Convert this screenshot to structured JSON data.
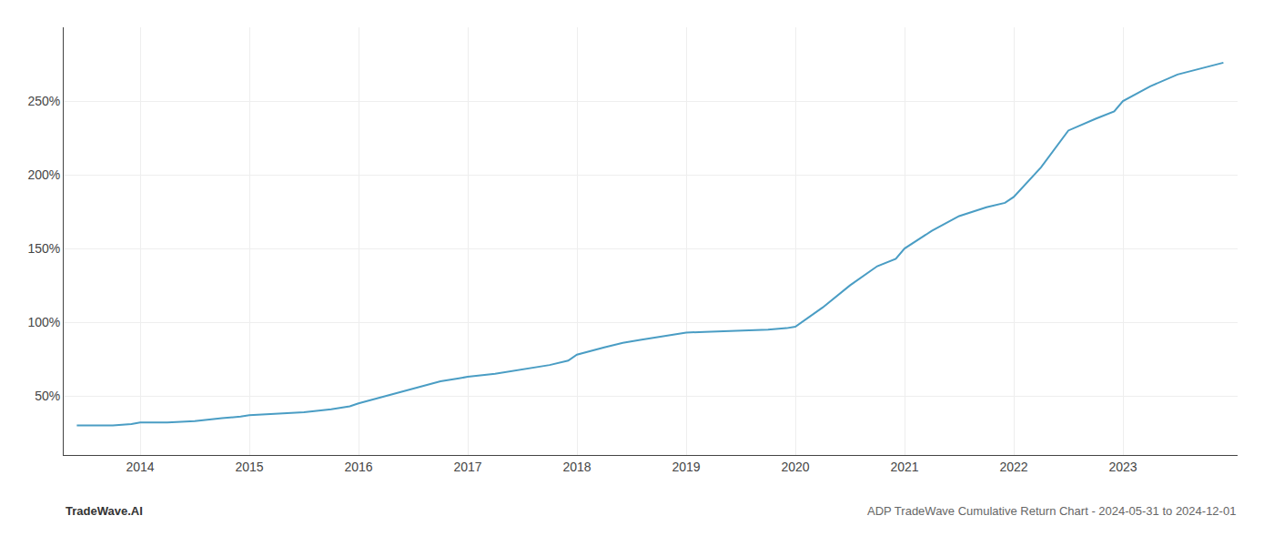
{
  "chart_data": {
    "type": "line",
    "annotations": [
      "TradeWave.AI",
      "ADP TradeWave Cumulative Return Chart - 2024-05-31 to 2024-12-01"
    ],
    "x": [
      2013.42,
      2013.58,
      2013.75,
      2013.92,
      2014.0,
      2014.25,
      2014.5,
      2014.75,
      2014.92,
      2015.0,
      2015.25,
      2015.5,
      2015.75,
      2015.92,
      2016.0,
      2016.25,
      2016.5,
      2016.75,
      2016.92,
      2017.0,
      2017.25,
      2017.5,
      2017.75,
      2017.92,
      2018.0,
      2018.25,
      2018.42,
      2018.58,
      2018.75,
      2018.92,
      2019.0,
      2019.17,
      2019.33,
      2019.5,
      2019.75,
      2019.92,
      2020.0,
      2020.25,
      2020.5,
      2020.75,
      2020.92,
      2021.0,
      2021.25,
      2021.5,
      2021.75,
      2021.92,
      2022.0,
      2022.25,
      2022.5,
      2022.75,
      2022.92,
      2023.0,
      2023.25,
      2023.5,
      2023.75,
      2023.92
    ],
    "values": [
      30,
      30,
      30,
      31,
      32,
      32,
      33,
      35,
      36,
      37,
      38,
      39,
      41,
      43,
      45,
      50,
      55,
      60,
      62,
      63,
      65,
      68,
      71,
      74,
      78,
      83,
      86,
      88,
      90,
      92,
      93,
      93.5,
      94,
      94.5,
      95,
      96,
      97,
      110,
      125,
      138,
      143,
      150,
      162,
      172,
      178,
      181,
      185,
      205,
      230,
      238,
      243,
      250,
      260,
      268,
      273,
      276
    ],
    "color": "#4a9dc4",
    "xlim": [
      2013.3,
      2024.05
    ],
    "xticks": [
      2014,
      2015,
      2016,
      2017,
      2018,
      2019,
      2020,
      2021,
      2022,
      2023
    ],
    "ylim": [
      10,
      300
    ],
    "yticks": [
      {
        "value": 50,
        "label": "50%"
      },
      {
        "value": 100,
        "label": "100%"
      },
      {
        "value": 150,
        "label": "150%"
      },
      {
        "value": 200,
        "label": "200%"
      },
      {
        "value": 250,
        "label": "250%"
      }
    ],
    "grid": true
  }
}
